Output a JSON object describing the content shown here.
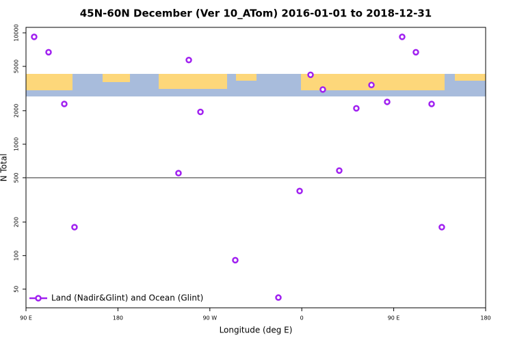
{
  "chart_data": {
    "type": "scatter",
    "title": "45N-60N December (Ver 10_ATom)   2016-01-01 to 2018-12-31",
    "x_label": "Longitude (deg E)",
    "y_label": "N Total",
    "xlim": [
      90,
      540
    ],
    "xticks": [
      {
        "value": 90,
        "label": "90 E"
      },
      {
        "value": 180,
        "label": "180"
      },
      {
        "value": 270,
        "label": "90 W"
      },
      {
        "value": 360,
        "label": "0"
      },
      {
        "value": 450,
        "label": "90 E"
      },
      {
        "value": 540,
        "label": "180"
      }
    ],
    "ylim": [
      34,
      11200
    ],
    "y_log": true,
    "yticks": [
      50,
      100,
      200,
      500,
      1000,
      2000,
      5000,
      10000
    ],
    "reference_line": 500,
    "legend_position": "bottom-left",
    "series": [
      {
        "name": "Land (Nadir&Glint) and Ocean (Glint)",
        "color": "#a020f0",
        "x": [
          98.0,
          112.1,
          127.5,
          137.5,
          239.3,
          249.4,
          260.8,
          294.9,
          337.1,
          357.9,
          368.6,
          380.6,
          396.7,
          413.4,
          428.2,
          443.6,
          458.3,
          471.7,
          487.1,
          497.1
        ],
        "values": [
          9200,
          6700,
          2300,
          180,
          550,
          5700,
          1950,
          91,
          42,
          380,
          4200,
          3100,
          580,
          2100,
          3400,
          2400,
          9200,
          6700,
          2300,
          180
        ]
      }
    ]
  }
}
